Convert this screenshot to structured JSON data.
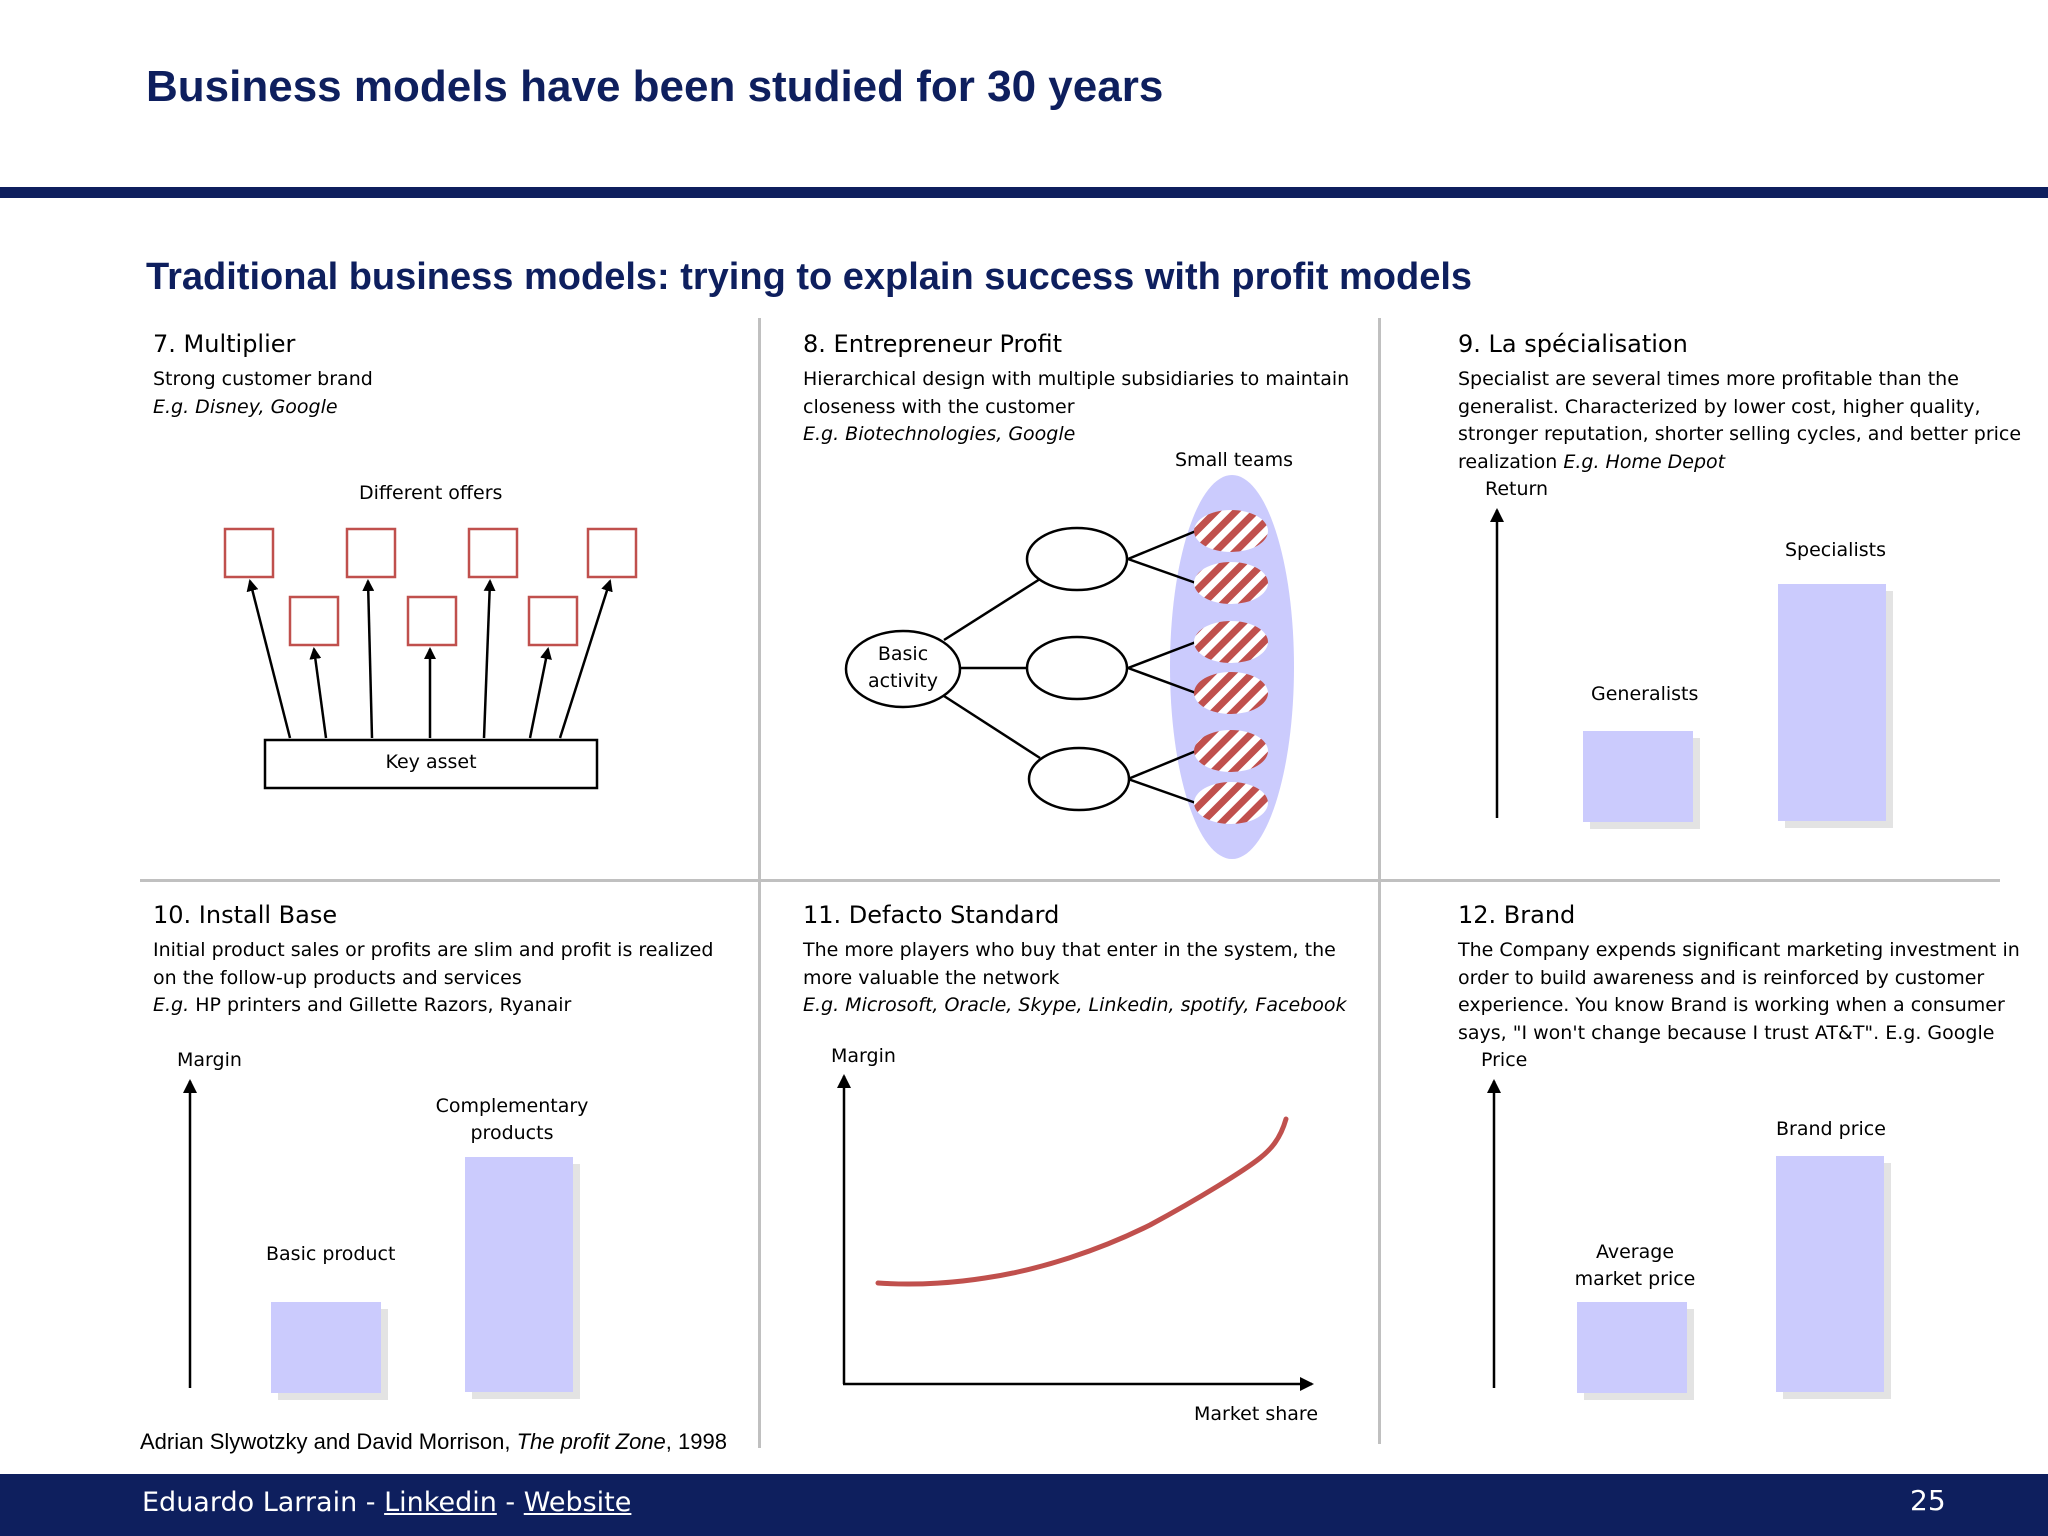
{
  "title": "Business models have been studied for 30 years",
  "subtitle": "Traditional business models: trying to explain success with profit models",
  "cells": [
    {
      "title": "7. Multiplier",
      "desc": "Strong customer brand",
      "example": "E.g. Disney, Google",
      "diagram": {
        "top_label": "Different offers",
        "base_label": "Key asset"
      }
    },
    {
      "title": "8. Entrepreneur Profit",
      "desc": "Hierarchical design with multiple subsidiaries to maintain closeness with the customer",
      "example": "E.g. Biotechnologies, Google",
      "diagram": {
        "group_label": "Small teams",
        "root_label_1": "Basic",
        "root_label_2": "activity"
      }
    },
    {
      "title": "9. La spécialisation",
      "desc": "Specialist are several times more profitable than the generalist. Characterized by lower cost, higher quality, stronger reputation, shorter selling cycles, and better price realization",
      "example": "E.g. Home Depot",
      "chart": {
        "y_axis": "Return",
        "bars": [
          {
            "label": "Generalists",
            "value": 0.4
          },
          {
            "label": "Specialists",
            "value": 1.0
          }
        ]
      }
    },
    {
      "title": "10. Install Base",
      "desc": "Initial product sales or profits are slim and profit is realized on the follow-up products and services",
      "example_prefix": "E.g.",
      "example": "HP printers and Gillette Razors, Ryanair",
      "chart": {
        "y_axis": "Margin",
        "bars": [
          {
            "label": "Basic product",
            "value": 0.39
          },
          {
            "label": "Complementary products",
            "value": 1.0
          }
        ]
      }
    },
    {
      "title": "11. Defacto Standard",
      "desc": "The more players who buy that enter in the system, the more valuable the network",
      "example": "E.g. Microsoft, Oracle, Skype, Linkedin, spotify, Facebook",
      "chart": {
        "y_axis": "Margin",
        "x_axis": "Market share",
        "curve": "increasing"
      }
    },
    {
      "title": "12. Brand",
      "desc": "The Company expends significant marketing investment in order to build awareness and is reinforced by customer experience. You know Brand is working when a consumer says, \"I won't change because I trust AT&T\". E.g. Google",
      "chart": {
        "y_axis": "Price",
        "bars": [
          {
            "label": "Average market price",
            "value": 0.39
          },
          {
            "label": "Brand price",
            "value": 1.0
          }
        ]
      }
    }
  ],
  "citation": {
    "authors": "Adrian Slywotzky and David Morrison, ",
    "book": "The profit Zone",
    "year": ", 1998"
  },
  "footer": {
    "author": "Eduardo Larrain",
    "sep1": " - ",
    "link1": "Linkedin",
    "sep2": " - ",
    "link2": "Website",
    "page": "25"
  },
  "colors": {
    "navy": "#0e1f5e",
    "bar_fill": "#cbcbfd",
    "accent_red": "#c0504d",
    "grid": "#c0c0c0"
  }
}
